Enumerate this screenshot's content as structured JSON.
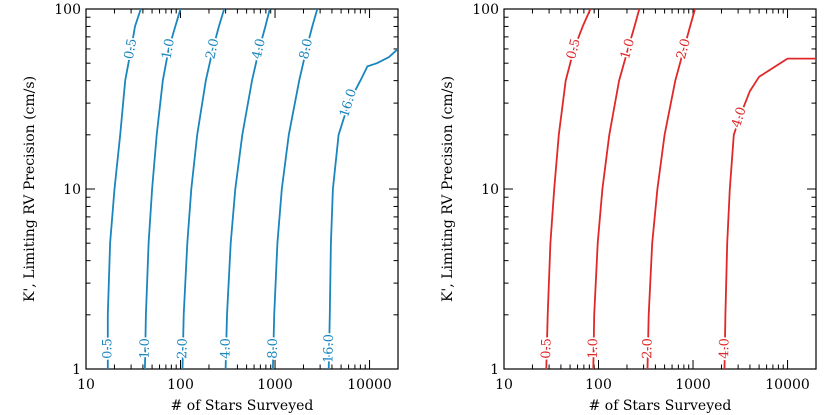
{
  "chart_data": [
    {
      "type": "line",
      "xlabel": "# of Stars Surveyed",
      "ylabel": "K', Limiting RV Precision (cm/s)",
      "xscale": "log",
      "yscale": "log",
      "xlim": [
        10,
        20000
      ],
      "ylim": [
        1,
        100
      ],
      "xticks": [
        10,
        100,
        1000,
        10000
      ],
      "xtick_labels": [
        "10",
        "100",
        "1000",
        "10000"
      ],
      "yticks": [
        1,
        10,
        100
      ],
      "ytick_labels": [
        "1",
        "10",
        "100"
      ],
      "color": "#1a86be",
      "series": [
        {
          "name": "0.5",
          "label_top": "0.5",
          "label_bottom": "0.5",
          "x": [
            17,
            17,
            18,
            20,
            23,
            26,
            30,
            33,
            38
          ],
          "y": [
            1,
            2,
            5,
            10,
            20,
            40,
            60,
            80,
            100
          ]
        },
        {
          "name": "1.0",
          "label_top": "1.0",
          "label_bottom": "1.0",
          "x": [
            42,
            43,
            46,
            50,
            56,
            65,
            75,
            88,
            100
          ],
          "y": [
            1,
            2,
            5,
            10,
            20,
            40,
            60,
            80,
            100
          ]
        },
        {
          "name": "2.0",
          "label_top": "2.0",
          "label_bottom": "2.0",
          "x": [
            105,
            108,
            118,
            130,
            150,
            185,
            220,
            255,
            290
          ],
          "y": [
            1,
            2,
            5,
            10,
            20,
            40,
            60,
            80,
            100
          ]
        },
        {
          "name": "4.0",
          "label_top": "4.0",
          "label_bottom": "4.0",
          "x": [
            300,
            310,
            340,
            380,
            450,
            570,
            680,
            790,
            880
          ],
          "y": [
            1,
            2,
            5,
            10,
            20,
            40,
            60,
            80,
            100
          ]
        },
        {
          "name": "8.0",
          "label_top": "8.0",
          "label_bottom": "8.0",
          "x": [
            950,
            980,
            1060,
            1180,
            1400,
            1800,
            2150,
            2480,
            2800
          ],
          "y": [
            1,
            2,
            5,
            10,
            20,
            40,
            60,
            80,
            100
          ]
        },
        {
          "name": "16.0",
          "label_top": "16.0",
          "label_bottom": "16.0",
          "x": [
            3700,
            3800,
            3900,
            4100,
            4700,
            6000,
            8000,
            9500,
            12000,
            16000,
            20000
          ],
          "y": [
            1,
            2,
            5,
            10,
            20,
            30,
            40,
            48,
            50,
            54,
            60
          ]
        }
      ]
    },
    {
      "type": "line",
      "xlabel": "# of Stars Surveyed",
      "ylabel": "K', Limiting RV Precision (cm/s)",
      "xscale": "log",
      "yscale": "log",
      "xlim": [
        10,
        20000
      ],
      "ylim": [
        1,
        100
      ],
      "xticks": [
        10,
        100,
        1000,
        10000
      ],
      "xtick_labels": [
        "10",
        "100",
        "1000",
        "10000"
      ],
      "yticks": [
        1,
        10,
        100
      ],
      "ytick_labels": [
        "1",
        "10",
        "100"
      ],
      "color": "#e02828",
      "series": [
        {
          "name": "0.5",
          "label_top": "0.5",
          "label_bottom": "0.5",
          "x": [
            28,
            29,
            31,
            34,
            38,
            45,
            55,
            68,
            82
          ],
          "y": [
            1,
            2,
            5,
            10,
            20,
            40,
            60,
            80,
            100
          ]
        },
        {
          "name": "1.0",
          "label_top": "1.0",
          "label_bottom": "1.0",
          "x": [
            88,
            90,
            98,
            110,
            130,
            165,
            205,
            240,
            270
          ],
          "y": [
            1,
            2,
            5,
            10,
            20,
            40,
            60,
            80,
            100
          ]
        },
        {
          "name": "2.0",
          "label_top": "2.0",
          "label_bottom": "2.0",
          "x": [
            330,
            340,
            370,
            420,
            500,
            650,
            800,
            930,
            1050
          ],
          "y": [
            1,
            2,
            5,
            10,
            20,
            40,
            60,
            80,
            100
          ]
        },
        {
          "name": "4.0",
          "label_top": "4.0",
          "label_bottom": "4.0",
          "x": [
            2150,
            2200,
            2300,
            2450,
            2700,
            3100,
            4000,
            5000,
            10000,
            20000
          ],
          "y": [
            1,
            2,
            5,
            10,
            20,
            25,
            35,
            42,
            53,
            53
          ]
        }
      ]
    }
  ]
}
